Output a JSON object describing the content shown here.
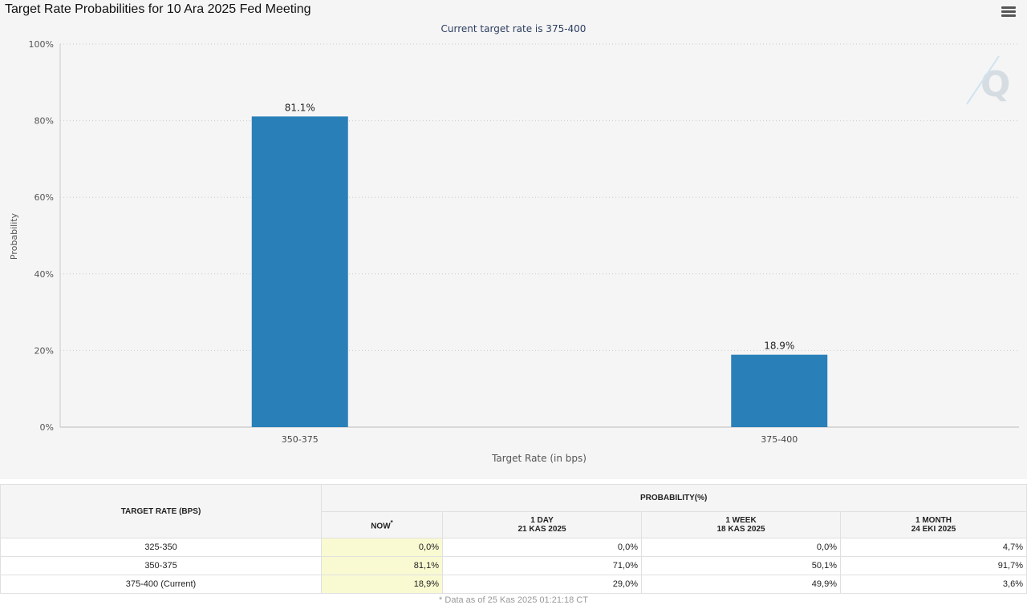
{
  "title": "Target Rate Probabilities for 10 Ara 2025 Fed Meeting",
  "colors": {
    "bar": "#2980b9",
    "background": "#f5f5f5",
    "now_column": "#fafad2"
  },
  "chart_data": {
    "type": "bar",
    "subtitle": "Current target rate is 375-400",
    "categories": [
      "350-375",
      "375-400"
    ],
    "values": [
      81.1,
      18.9
    ],
    "data_labels": [
      "81.1%",
      "18.9%"
    ],
    "xlabel": "Target Rate (in bps)",
    "ylabel": "Probability",
    "ylim": [
      0,
      100
    ],
    "yticks": [
      "0%",
      "20%",
      "40%",
      "60%",
      "80%",
      "100%"
    ],
    "grid": true
  },
  "table": {
    "rate_header": "TARGET RATE (BPS)",
    "prob_header": "PROBABILITY(%)",
    "cols": [
      {
        "label": "NOW",
        "sup": "*",
        "date": ""
      },
      {
        "label": "1 DAY",
        "date": "21 KAS 2025"
      },
      {
        "label": "1 WEEK",
        "date": "18 KAS 2025"
      },
      {
        "label": "1 MONTH",
        "date": "24 EKI 2025"
      }
    ],
    "rows": [
      {
        "rate": "325-350",
        "values": [
          "0,0%",
          "0,0%",
          "0,0%",
          "4,7%"
        ]
      },
      {
        "rate": "350-375",
        "values": [
          "81,1%",
          "71,0%",
          "50,1%",
          "91,7%"
        ]
      },
      {
        "rate": "375-400 (Current)",
        "values": [
          "18,9%",
          "29,0%",
          "49,9%",
          "3,6%"
        ]
      }
    ],
    "note": "* Data as of 25 Kas 2025 01:21:18 CT"
  }
}
